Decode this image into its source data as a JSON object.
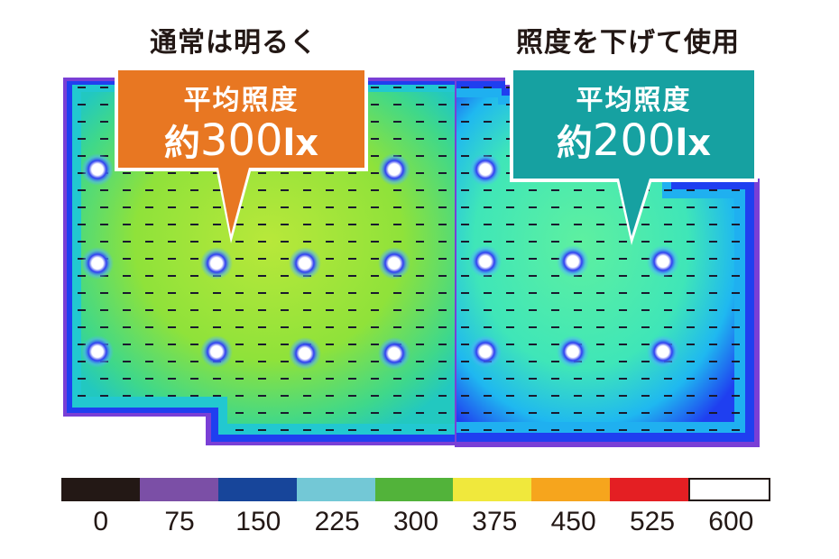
{
  "headings": {
    "left": "通常は明るく",
    "right": "照度を下げて使用"
  },
  "callouts": {
    "left": {
      "label": "平均照度",
      "prefix": "約",
      "value": "300",
      "unit": "lx",
      "color": "#e87722"
    },
    "right": {
      "label": "平均照度",
      "prefix": "約",
      "value": "200",
      "unit": "lx",
      "color": "#16a1a1"
    }
  },
  "legend": {
    "ticks": [
      "0",
      "75",
      "150",
      "225",
      "300",
      "375",
      "450",
      "525",
      "600"
    ],
    "colors": [
      "#231815",
      "#7b4fa6",
      "#17459a",
      "#73c8d6",
      "#52b33a",
      "#f0e83c",
      "#f6a51d",
      "#e41f23",
      "#ffffff"
    ]
  },
  "colors": {
    "map_left": "#8fe23a",
    "map_right": "#3fe6b8",
    "edge_blue": "#1f3ff0",
    "edge_purple": "#7a3fd6"
  }
}
